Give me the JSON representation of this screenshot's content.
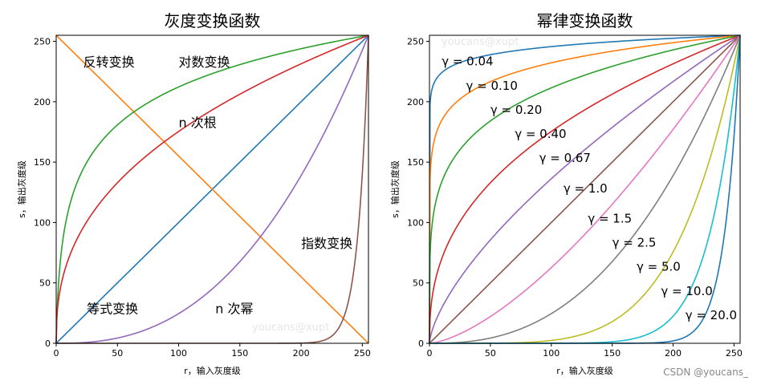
{
  "watermark": "youcans@xupt",
  "credit": "CSDN @youcans_",
  "chart_data": [
    {
      "type": "line",
      "title": "灰度变换函数",
      "xlabel": "r，输入灰度级",
      "ylabel": "s，输出灰度级",
      "xlim": [
        0,
        255
      ],
      "ylim": [
        0,
        255
      ],
      "xticks": [
        0,
        50,
        100,
        150,
        200,
        250
      ],
      "yticks": [
        0,
        50,
        100,
        150,
        200,
        250
      ],
      "series": [
        {
          "name": "等式变换",
          "kind": "identity",
          "color": "#1f77b4"
        },
        {
          "name": "反转变换",
          "kind": "negative",
          "color": "#ff7f0e"
        },
        {
          "name": "对数变换",
          "kind": "log",
          "color": "#2ca02c"
        },
        {
          "name": "n 次根",
          "kind": "power",
          "gamma": 0.4,
          "color": "#d62728"
        },
        {
          "name": "n 次幂",
          "kind": "power",
          "gamma": 2.5,
          "color": "#9467bd"
        },
        {
          "name": "指数变换",
          "kind": "power",
          "gamma": 30,
          "color": "#8c564b"
        }
      ],
      "annotations": [
        {
          "text": "反转变换",
          "x": 22,
          "y": 229
        },
        {
          "text": "对数变换",
          "x": 100,
          "y": 229
        },
        {
          "text": "n  次根",
          "x": 100,
          "y": 179
        },
        {
          "text": "指数变换",
          "x": 200,
          "y": 79
        },
        {
          "text": "等式变换",
          "x": 25,
          "y": 25
        },
        {
          "text": "n  次幂",
          "x": 130,
          "y": 25
        }
      ]
    },
    {
      "type": "line",
      "title": "幂律变换函数",
      "xlabel": "r，输入灰度级",
      "ylabel": "s，输出灰度级",
      "xlim": [
        0,
        255
      ],
      "ylim": [
        0,
        255
      ],
      "xticks": [
        0,
        50,
        100,
        150,
        200,
        250
      ],
      "yticks": [
        0,
        50,
        100,
        150,
        200,
        250
      ],
      "series": [
        {
          "name": "γ = 0.04",
          "gamma": 0.04,
          "color": "#1f77b4"
        },
        {
          "name": "γ = 0.10",
          "gamma": 0.1,
          "color": "#ff7f0e"
        },
        {
          "name": "γ = 0.20",
          "gamma": 0.2,
          "color": "#2ca02c"
        },
        {
          "name": "γ = 0.40",
          "gamma": 0.4,
          "color": "#d62728"
        },
        {
          "name": "γ = 0.67",
          "gamma": 0.67,
          "color": "#9467bd"
        },
        {
          "name": "γ = 1.0",
          "gamma": 1.0,
          "color": "#8c564b"
        },
        {
          "name": "γ = 1.5",
          "gamma": 1.5,
          "color": "#e377c2"
        },
        {
          "name": "γ = 2.5",
          "gamma": 2.5,
          "color": "#7f7f7f"
        },
        {
          "name": "γ = 5.0",
          "gamma": 5.0,
          "color": "#bcbd22"
        },
        {
          "name": "γ = 10.0",
          "gamma": 10.0,
          "color": "#17becf"
        },
        {
          "name": "γ = 20.0",
          "gamma": 20.0,
          "color": "#1f77b4"
        }
      ],
      "annotations": [
        {
          "text": "γ = 0.04",
          "x": 10,
          "y": 230
        },
        {
          "text": "γ = 0.10",
          "x": 30,
          "y": 210
        },
        {
          "text": "γ = 0.20",
          "x": 50,
          "y": 190
        },
        {
          "text": "γ = 0.40",
          "x": 70,
          "y": 170
        },
        {
          "text": "γ = 0.67",
          "x": 90,
          "y": 150
        },
        {
          "text": "γ = 1.0",
          "x": 110,
          "y": 125
        },
        {
          "text": "γ = 1.5",
          "x": 130,
          "y": 100
        },
        {
          "text": "γ = 2.5",
          "x": 150,
          "y": 80
        },
        {
          "text": "γ = 5.0",
          "x": 170,
          "y": 60
        },
        {
          "text": "γ = 10.0",
          "x": 190,
          "y": 40
        },
        {
          "text": "γ = 20.0",
          "x": 210,
          "y": 20
        }
      ]
    }
  ]
}
